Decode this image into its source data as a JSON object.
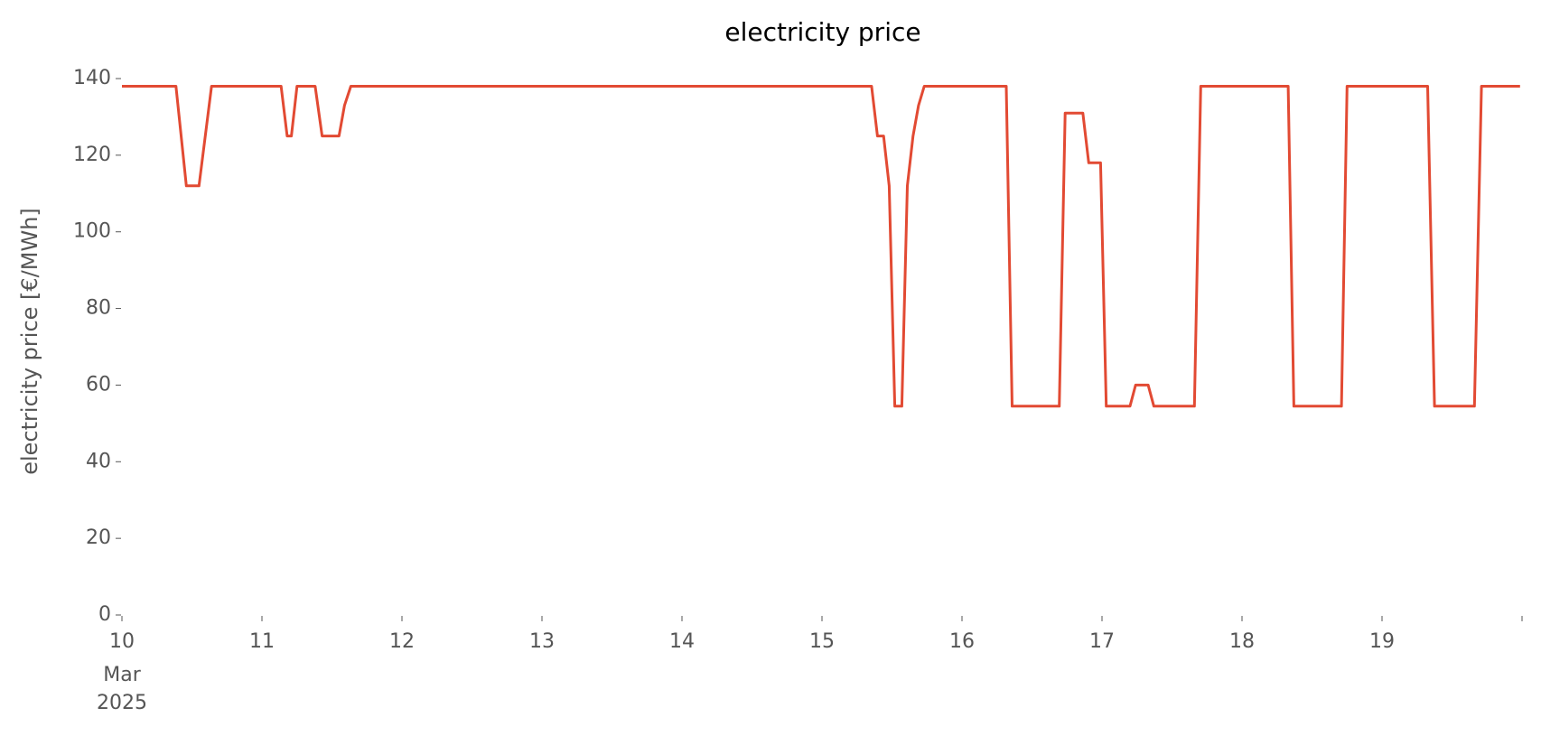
{
  "chart_data": {
    "type": "line",
    "title": "electricity price",
    "ylabel": "electricity price [€/MWh]",
    "x": [
      10,
      10.386,
      10.46,
      10.55,
      10.64,
      11.137,
      11.18,
      11.21,
      11.25,
      11.38,
      11.43,
      11.55,
      11.59,
      11.635,
      15.354,
      15.396,
      15.44,
      15.48,
      15.52,
      15.57,
      15.61,
      15.65,
      15.69,
      15.73,
      16.316,
      16.358,
      16.695,
      16.737,
      16.863,
      16.905,
      16.99,
      17.03,
      17.2,
      17.24,
      17.33,
      17.37,
      17.66,
      17.705,
      18.33,
      18.37,
      18.71,
      18.75,
      19.326,
      19.375,
      19.66,
      19.71,
      19.986
    ],
    "series": [
      {
        "name": "electricity price",
        "color": "#e24a33",
        "values": [
          138,
          138,
          112,
          112,
          138,
          138,
          125,
          125,
          138,
          138,
          125,
          125,
          133,
          138,
          138,
          125,
          125,
          112,
          54.5,
          54.5,
          112,
          125,
          133,
          138,
          138,
          54.5,
          54.5,
          131,
          131,
          118,
          118,
          54.5,
          54.5,
          60,
          60,
          54.5,
          54.5,
          138,
          138,
          54.5,
          54.5,
          138,
          138,
          54.5,
          54.5,
          138,
          138
        ]
      }
    ],
    "xlim": [
      10,
      20
    ],
    "xticks": [
      10,
      11,
      12,
      13,
      14,
      15,
      16,
      17,
      18,
      19,
      {
        "value": 20,
        "label": null
      }
    ],
    "xtick_sublabels": [
      "Mar",
      "2025"
    ],
    "ylim": [
      0,
      140
    ],
    "yticks": [
      0,
      20,
      40,
      60,
      80,
      100,
      120,
      140
    ],
    "grid": false
  }
}
